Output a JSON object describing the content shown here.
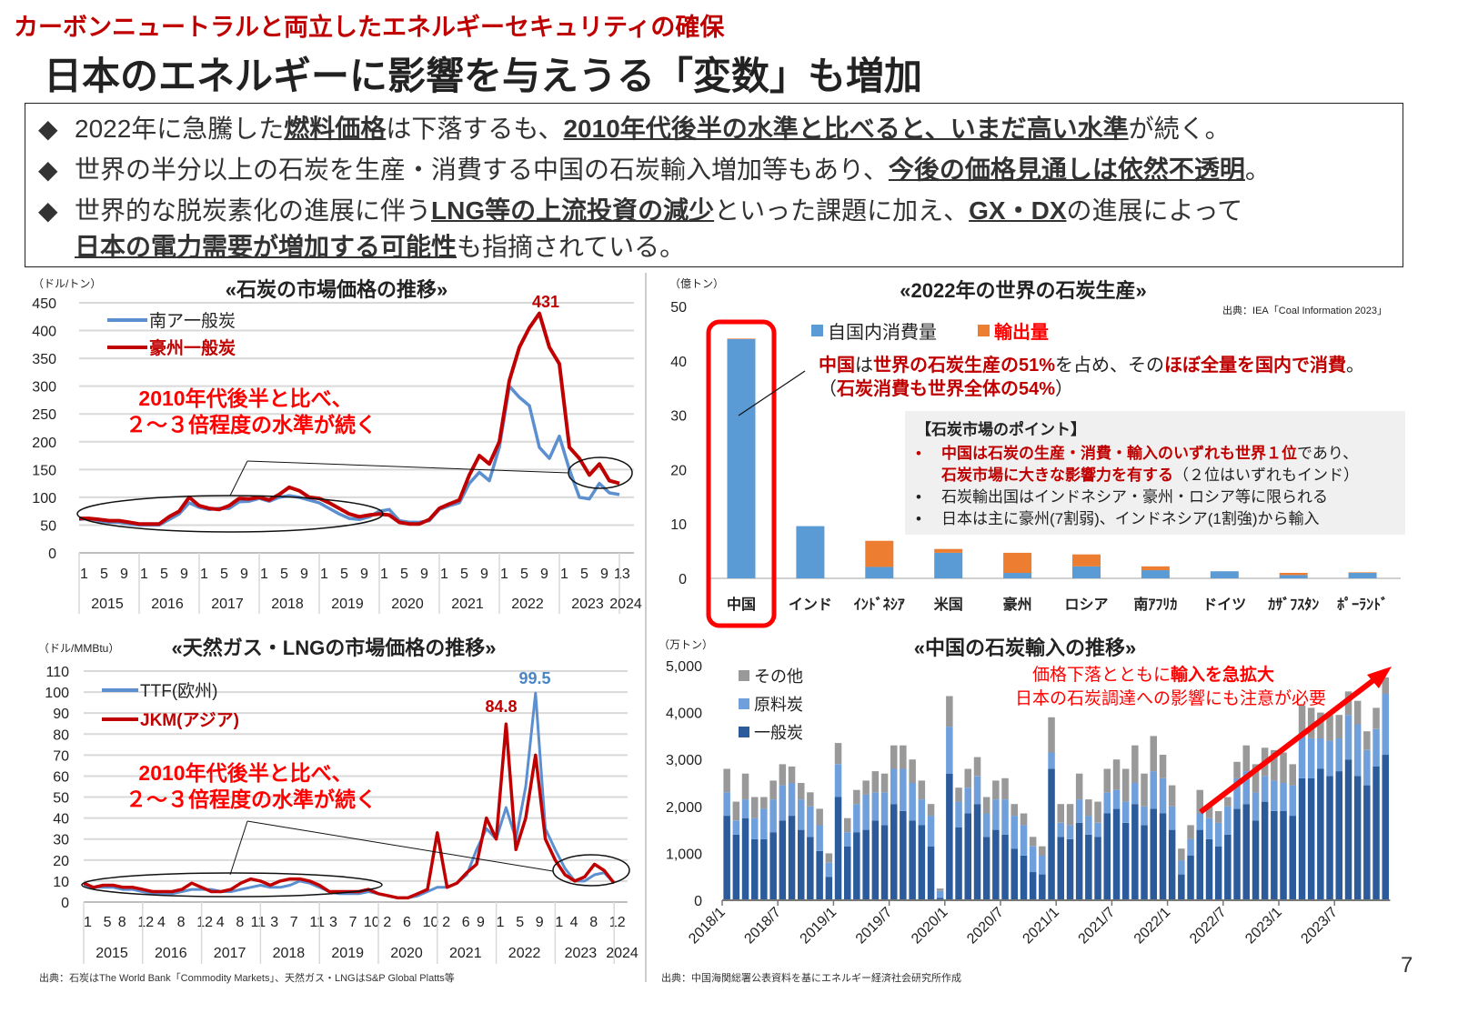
{
  "header": {
    "subtitle": "カーボンニュートラルと両立したエネルギーセキュリティの確保",
    "title": "日本のエネルギーに影響を与えうる「変数」も増加"
  },
  "bullets": [
    [
      {
        "t": "2022年に急騰した",
        "b": false
      },
      {
        "t": "燃料価格",
        "b": true
      },
      {
        "t": "は下落するも、",
        "b": false
      },
      {
        "t": "2010年代後半の水準と比べると、いまだ高い水準",
        "b": true
      },
      {
        "t": "が続く。",
        "b": false
      }
    ],
    [
      {
        "t": "世界の半分以上の石炭を生産・消費する中国の石炭輸入増加等もあり、",
        "b": false
      },
      {
        "t": "今後の価格見通しは依然不透明",
        "b": true
      },
      {
        "t": "。",
        "b": false
      }
    ],
    [
      {
        "t": "世界的な脱炭素化の進展に伴う",
        "b": false
      },
      {
        "t": "LNG等の上流投資の減少",
        "b": true
      },
      {
        "t": "といった課題に加え、",
        "b": false
      },
      {
        "t": "GX・DX",
        "b": true
      },
      {
        "t": "の進展によって",
        "b": false
      }
    ],
    [
      {
        "t": "日本の電力需要が増加する可能性",
        "b": true
      },
      {
        "t": "も指摘されている。",
        "b": false
      }
    ]
  ],
  "bullet_icon": "black-diamond",
  "colors": {
    "accent_red": "#c00000",
    "alert_red": "#ff0000",
    "blue": "#5b9bd5",
    "orange": "#ed7d31",
    "thermal": "#2b5b9a",
    "coking": "#6fa0dc",
    "other": "#999999"
  },
  "footer": {
    "source_left": "出典：石炭はThe World Bank「Commodity Markets」、天然ガス・LNGはS&P Global Platts等",
    "source_right": "出典：中国海関総署公表資料を基にエネルギー経済社会研究所作成",
    "page_number": "7"
  },
  "chart_data": [
    {
      "type": "line",
      "title": "«石炭の市場価格の推移»",
      "ylabel": "（ドル/トン）",
      "ylim": [
        0,
        450
      ],
      "y_ticks": [
        "0",
        "50",
        "100",
        "150",
        "200",
        "250",
        "300",
        "350",
        "400",
        "450"
      ],
      "x_groups": [
        {
          "year": "2015",
          "ticks": [
            "1",
            "5",
            "9"
          ]
        },
        {
          "year": "2016",
          "ticks": [
            "1",
            "5",
            "9"
          ]
        },
        {
          "year": "2017",
          "ticks": [
            "1",
            "5",
            "9"
          ]
        },
        {
          "year": "2018",
          "ticks": [
            "1",
            "5",
            "9"
          ]
        },
        {
          "year": "2019",
          "ticks": [
            "1",
            "5",
            "9"
          ]
        },
        {
          "year": "2020",
          "ticks": [
            "1",
            "5",
            "9"
          ]
        },
        {
          "year": "2021",
          "ticks": [
            "1",
            "5",
            "9"
          ]
        },
        {
          "year": "2022",
          "ticks": [
            "1",
            "5",
            "9"
          ]
        },
        {
          "year": "2023",
          "ticks": [
            "1",
            "5",
            "9",
            "13"
          ]
        },
        {
          "year": "2024",
          "ticks": []
        }
      ],
      "grid": true,
      "legend_position": "top-left",
      "x": [
        "2015/1",
        "2015/3",
        "2015/5",
        "2015/7",
        "2015/9",
        "2015/11",
        "2016/1",
        "2016/3",
        "2016/5",
        "2016/7",
        "2016/9",
        "2016/11",
        "2017/1",
        "2017/3",
        "2017/5",
        "2017/7",
        "2017/9",
        "2017/11",
        "2018/1",
        "2018/3",
        "2018/5",
        "2018/7",
        "2018/9",
        "2018/11",
        "2019/1",
        "2019/3",
        "2019/5",
        "2019/7",
        "2019/9",
        "2019/11",
        "2020/1",
        "2020/3",
        "2020/5",
        "2020/7",
        "2020/9",
        "2020/11",
        "2021/1",
        "2021/3",
        "2021/5",
        "2021/7",
        "2021/9",
        "2021/11",
        "2022/1",
        "2022/3",
        "2022/5",
        "2022/7",
        "2022/9",
        "2022/11",
        "2023/1",
        "2023/3",
        "2023/5",
        "2023/7",
        "2023/9",
        "2023/11",
        "2024/1"
      ],
      "series": [
        {
          "name": "南ア一般炭",
          "color": "#5b8fd0",
          "values": [
            60,
            62,
            58,
            55,
            55,
            52,
            50,
            50,
            50,
            60,
            70,
            90,
            82,
            78,
            80,
            80,
            92,
            93,
            98,
            93,
            100,
            103,
            100,
            95,
            90,
            80,
            70,
            62,
            60,
            65,
            75,
            78,
            58,
            55,
            55,
            58,
            78,
            85,
            90,
            125,
            145,
            130,
            190,
            300,
            280,
            265,
            190,
            170,
            210,
            150,
            100,
            97,
            125,
            108,
            105
          ]
        },
        {
          "name": "豪州一般炭",
          "color": "#c00000",
          "values": [
            62,
            62,
            60,
            58,
            58,
            55,
            52,
            52,
            52,
            65,
            75,
            100,
            85,
            80,
            78,
            85,
            98,
            97,
            100,
            95,
            105,
            118,
            112,
            100,
            98,
            90,
            80,
            70,
            65,
            68,
            70,
            68,
            55,
            52,
            52,
            60,
            80,
            88,
            95,
            140,
            175,
            160,
            200,
            310,
            370,
            405,
            431,
            370,
            340,
            190,
            170,
            140,
            160,
            130,
            125
          ]
        }
      ],
      "annotations": {
        "peak": "431",
        "note_line1": "2010年代後半と比べ、",
        "note_line2": "２～３倍程度の水準が続く"
      }
    },
    {
      "type": "bar",
      "stacked": true,
      "title": "«2022年の世界の石炭生産»",
      "ylabel": "（億トン）",
      "source": "出典：IEA「Coal Information 2023」",
      "ylim": [
        0,
        50
      ],
      "y_ticks": [
        "0",
        "10",
        "20",
        "30",
        "40",
        "50"
      ],
      "categories": [
        "中国",
        "インド",
        "ｲﾝﾄﾞﾈｼｱ",
        "米国",
        "豪州",
        "ロシア",
        "南ｱﾌﾘｶ",
        "ドイツ",
        "ｶｻﾞﾌｽﾀﾝ",
        "ﾎﾟｰﾗﾝﾄﾞ"
      ],
      "legend_position": "top",
      "series": [
        {
          "name": "自国内消費量",
          "color": "#5b9bd5",
          "values": [
            44,
            9.6,
            2.1,
            4.7,
            1.0,
            2.2,
            1.5,
            1.3,
            0.6,
            1.0
          ]
        },
        {
          "name": "輸出量",
          "color": "#ed7d31",
          "values": [
            0.1,
            0,
            4.8,
            0.7,
            3.7,
            2.2,
            0.7,
            0,
            0.4,
            0.1
          ]
        }
      ],
      "callout": {
        "line1": [
          {
            "t": "中国",
            "r": true
          },
          {
            "t": "は",
            "r": false
          },
          {
            "t": "世界の石炭生産の51%",
            "r": true
          },
          {
            "t": "を占め、その",
            "r": false
          },
          {
            "t": "ほぼ全量を国内で消費",
            "r": true
          },
          {
            "t": "。",
            "r": false
          }
        ],
        "line2": [
          {
            "t": "（",
            "r": false
          },
          {
            "t": "石炭消費も世界全体の54%",
            "r": true
          },
          {
            "t": "）",
            "r": false
          }
        ]
      },
      "points": {
        "title": "【石炭市場のポイント】",
        "items": [
          [
            {
              "t": "中国は石炭の生産・消費・輸入のいずれも世界１位",
              "r": true
            },
            {
              "t": "であり、",
              "r": false
            }
          ],
          [
            {
              "t": "石炭市場に大きな影響力を有する",
              "r": true
            },
            {
              "t": "（２位はいずれもインド）",
              "r": false
            }
          ],
          [
            {
              "t": "石炭輸出国はインドネシア・豪州・ロシア等に限られる",
              "r": false
            }
          ],
          [
            {
              "t": "日本は主に豪州(7割弱)、インドネシア(1割強)から輸入",
              "r": false
            }
          ]
        ]
      }
    },
    {
      "type": "line",
      "title": "«天然ガス・LNGの市場価格の推移»",
      "ylabel": "（ドル/MMBtu）",
      "ylim": [
        0,
        110
      ],
      "y_ticks": [
        "0",
        "10",
        "20",
        "30",
        "40",
        "50",
        "60",
        "70",
        "80",
        "90",
        "100",
        "110"
      ],
      "x_groups": [
        {
          "year": "2015",
          "ticks": [
            "1",
            "5",
            "8",
            "12"
          ]
        },
        {
          "year": "2016",
          "ticks": [
            "4",
            "8",
            "12"
          ]
        },
        {
          "year": "2017",
          "ticks": [
            "4",
            "8",
            "11"
          ]
        },
        {
          "year": "2018",
          "ticks": [
            "3",
            "7",
            "11"
          ]
        },
        {
          "year": "2019",
          "ticks": [
            "3",
            "7",
            "10"
          ]
        },
        {
          "year": "2020",
          "ticks": [
            "2",
            "6",
            "10"
          ]
        },
        {
          "year": "2021",
          "ticks": [
            "2",
            "6",
            "9"
          ]
        },
        {
          "year": "2022",
          "ticks": [
            "1",
            "5",
            "9"
          ]
        },
        {
          "year": "2023",
          "ticks": [
            "1",
            "4",
            "8",
            "12"
          ]
        },
        {
          "year": "2024",
          "ticks": []
        }
      ],
      "grid": true,
      "legend_position": "top-left",
      "x": [
        "2015/1",
        "2015/3",
        "2015/5",
        "2015/7",
        "2015/9",
        "2015/11",
        "2016/1",
        "2016/3",
        "2016/5",
        "2016/7",
        "2016/9",
        "2016/11",
        "2017/1",
        "2017/3",
        "2017/5",
        "2017/7",
        "2017/9",
        "2017/11",
        "2018/1",
        "2018/3",
        "2018/5",
        "2018/7",
        "2018/9",
        "2018/11",
        "2019/1",
        "2019/3",
        "2019/5",
        "2019/7",
        "2019/9",
        "2019/11",
        "2020/1",
        "2020/3",
        "2020/5",
        "2020/7",
        "2020/9",
        "2020/11",
        "2021/1",
        "2021/3",
        "2021/5",
        "2021/7",
        "2021/9",
        "2021/11",
        "2022/1",
        "2022/3",
        "2022/5",
        "2022/7",
        "2022/9",
        "2022/11",
        "2023/1",
        "2023/3",
        "2023/5",
        "2023/7",
        "2023/9",
        "2023/11",
        "2024/1"
      ],
      "series": [
        {
          "name": "TTF(欧州)",
          "color": "#5b8fd0",
          "values": [
            8,
            7,
            7,
            7,
            6,
            6,
            5,
            4,
            4,
            4,
            5,
            6,
            6,
            6,
            5,
            5,
            6,
            7,
            8,
            7,
            7,
            8,
            10,
            9,
            7,
            5,
            4,
            4,
            4,
            5,
            4,
            3,
            2,
            2,
            3,
            5,
            7,
            7,
            9,
            13,
            25,
            35,
            30,
            45,
            30,
            55,
            99.5,
            35,
            25,
            16,
            10,
            10,
            13,
            14,
            9
          ]
        },
        {
          "name": "JKM(アジア)",
          "color": "#c00000",
          "values": [
            9,
            7,
            8,
            8,
            7,
            7,
            6,
            5,
            5,
            5,
            6,
            9,
            7,
            5,
            5,
            6,
            9,
            11,
            10,
            8,
            10,
            11,
            11,
            10,
            8,
            5,
            5,
            5,
            5,
            6,
            4,
            3,
            2,
            2,
            4,
            6,
            33,
            7,
            9,
            14,
            18,
            40,
            30,
            84.8,
            25,
            40,
            70,
            30,
            20,
            13,
            10,
            12,
            18,
            15,
            9
          ]
        }
      ],
      "annotations": {
        "peak_ttf": "99.5",
        "peak_jkm": "84.8",
        "note_line1": "2010年代後半と比べ、",
        "note_line2": "２～３倍程度の水準が続く"
      }
    },
    {
      "type": "bar",
      "stacked": true,
      "title": "«中国の石炭輸入の推移»",
      "ylabel": "（万トン）",
      "ylim": [
        0,
        5000
      ],
      "y_ticks": [
        "0",
        "1,000",
        "2,000",
        "3,000",
        "4,000",
        "5,000"
      ],
      "x_range": [
        "2018/1",
        "2023/12"
      ],
      "x_tick_labels": [
        "2018/1",
        "2018/7",
        "2019/1",
        "2019/7",
        "2020/1",
        "2020/7",
        "2021/1",
        "2021/7",
        "2022/1",
        "2022/7",
        "2023/1",
        "2023/7"
      ],
      "legend_position": "top-left",
      "series": [
        {
          "name": "一般炭",
          "color": "#2b5b9a",
          "values": [
            1800,
            1400,
            1750,
            1300,
            1300,
            1450,
            1700,
            1800,
            1500,
            1350,
            1050,
            500,
            2200,
            1150,
            1450,
            1500,
            1700,
            1600,
            2050,
            1900,
            1700,
            1600,
            1150,
            50,
            2700,
            1550,
            1850,
            2050,
            1350,
            1500,
            1400,
            1100,
            950,
            600,
            550,
            2800,
            1350,
            1300,
            1650,
            1400,
            1350,
            1850,
            1950,
            1650,
            2050,
            1600,
            1950,
            1850,
            1500,
            550,
            950,
            1500,
            1300,
            1150,
            1400,
            1950,
            2050,
            1700,
            2100,
            1900,
            1900,
            1800,
            2600,
            2600,
            2800,
            2650,
            2750,
            3000,
            2650,
            2450,
            2850,
            3100
          ]
        },
        {
          "name": "原料炭",
          "color": "#6fa0dc",
          "values": [
            500,
            300,
            400,
            450,
            650,
            700,
            750,
            700,
            650,
            650,
            550,
            300,
            700,
            300,
            600,
            750,
            600,
            700,
            750,
            900,
            800,
            550,
            650,
            150,
            1000,
            550,
            550,
            600,
            500,
            650,
            750,
            700,
            650,
            550,
            400,
            350,
            300,
            300,
            500,
            400,
            300,
            450,
            400,
            450,
            450,
            400,
            800,
            750,
            500,
            300,
            350,
            350,
            450,
            500,
            600,
            650,
            700,
            600,
            550,
            650,
            600,
            650,
            900,
            850,
            650,
            750,
            700,
            950,
            1100,
            750,
            800,
            1300
          ]
        },
        {
          "name": "その他",
          "color": "#999999",
          "values": [
            500,
            400,
            550,
            450,
            250,
            400,
            450,
            350,
            350,
            300,
            350,
            200,
            450,
            300,
            300,
            300,
            450,
            400,
            500,
            500,
            500,
            400,
            250,
            50,
            650,
            300,
            400,
            400,
            350,
            400,
            450,
            250,
            250,
            200,
            200,
            750,
            400,
            450,
            550,
            350,
            450,
            500,
            650,
            700,
            800,
            700,
            750,
            500,
            450,
            250,
            300,
            500,
            250,
            250,
            200,
            350,
            550,
            600,
            600,
            650,
            650,
            450,
            650,
            650,
            550,
            550,
            500,
            500,
            500,
            400,
            450,
            350
          ]
        }
      ],
      "annotations": {
        "line1_normal": "価格下落とともに",
        "line1_bold": "輸入を急拡大",
        "line2": "日本の石炭調達への影響にも注意が必要"
      }
    }
  ]
}
